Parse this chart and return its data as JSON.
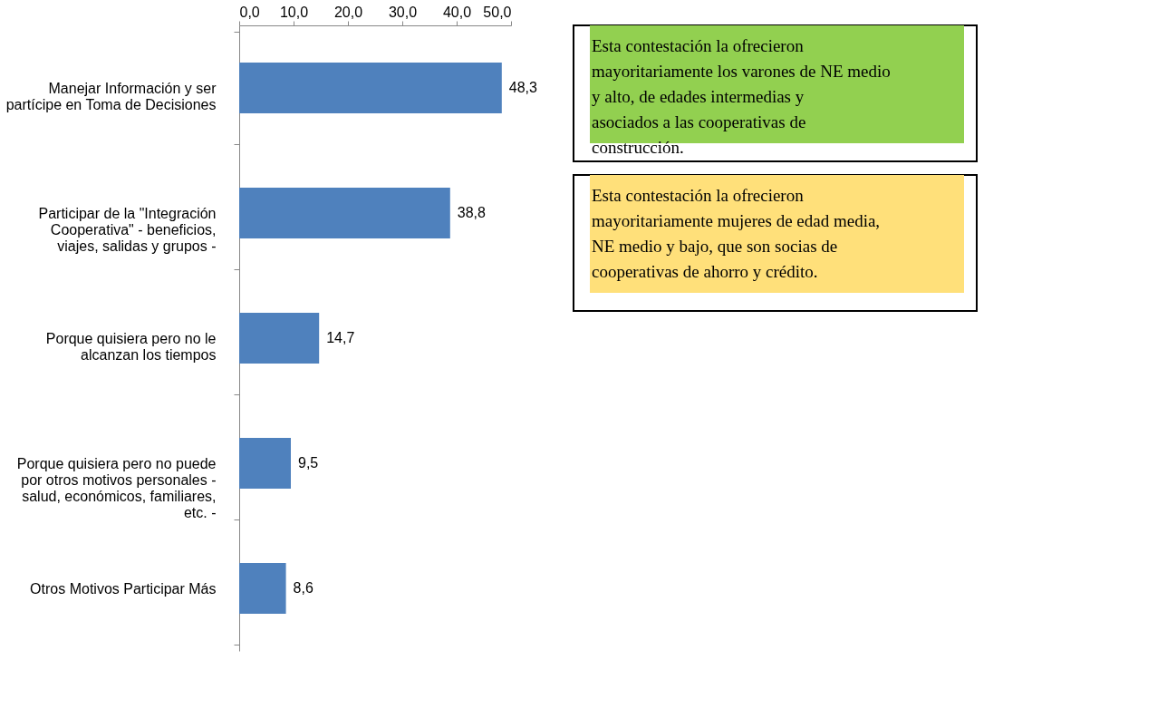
{
  "chart_data": {
    "type": "bar",
    "orientation": "horizontal",
    "categories": [
      "Manejar Información y ser partícipe en Toma de Decisiones",
      "Participar de la \"Integración Cooperativa\" - beneficios, viajes, salidas y grupos -",
      "Porque quisiera pero no le alcanzan los tiempos",
      "Porque quisiera pero no puede por otros motivos personales - salud, económicos, familiares, etc. -",
      "Otros Motivos Participar Más"
    ],
    "values": [
      48.3,
      38.8,
      14.7,
      9.5,
      8.6
    ],
    "value_labels": [
      "48,3",
      "38,8",
      "14,7",
      "9,5",
      "8,6"
    ],
    "color": "#4f81bd",
    "xlim": [
      0,
      50
    ],
    "xticks": [
      {
        "value": 0,
        "label": "0,0"
      },
      {
        "value": 10,
        "label": "10,0"
      },
      {
        "value": 20,
        "label": "20,0"
      },
      {
        "value": 30,
        "label": "30,0"
      },
      {
        "value": 40,
        "label": "40,0"
      },
      {
        "value": 50,
        "label": "50,0"
      }
    ],
    "grid": false,
    "annotations": [
      "Esta contestación la ofrecieron mayoritariamente los varones de NE medio y alto, de edades intermedias y asociados a las cooperativas de construcción.",
      "Esta contestación la ofrecieron mayoritariamente mujeres de edad media, NE medio y bajo, que son socias de cooperativas de ahorro y crédito."
    ]
  }
}
